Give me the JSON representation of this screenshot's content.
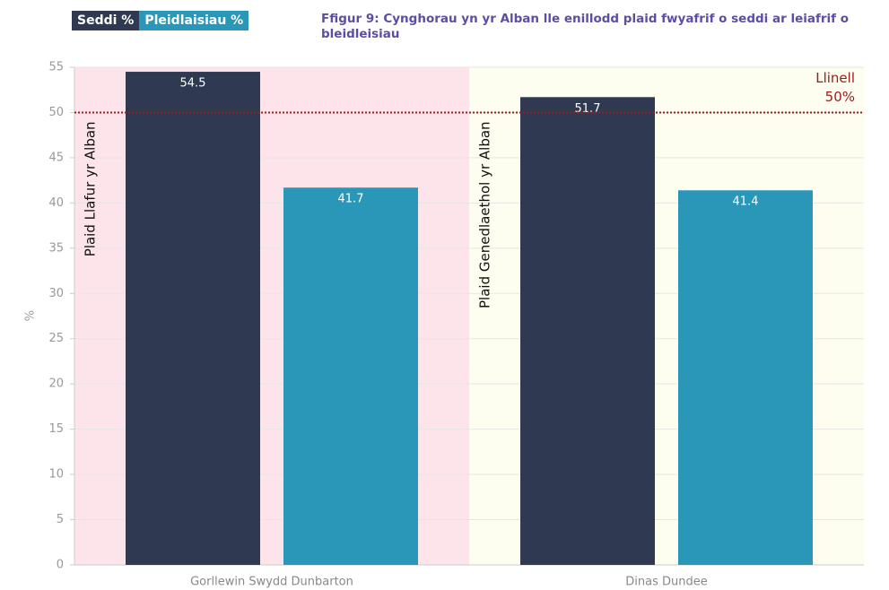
{
  "chart_data": {
    "type": "bar",
    "title": "Ffigur 9: Cynghorau yn yr Alban lle enillodd plaid fwyafrif o seddi ar leiafrif o bleidleisiau",
    "y_label": "%",
    "categories": [
      "Gorllewin Swydd Dunbarton",
      "Dinas Dundee"
    ],
    "group_annotations": [
      "Plaid Llafur yr Alban",
      "Plaid Genedlaethol yr Alban"
    ],
    "group_backgrounds": [
      "#fce4ea",
      "#fdfdf0"
    ],
    "series": [
      {
        "name": "Seddi %",
        "color": "#2f3a52",
        "values": [
          54.5,
          51.7
        ]
      },
      {
        "name": "Pleidlaisiau %",
        "color": "#2a97b8",
        "values": [
          41.7,
          41.4
        ]
      }
    ],
    "reference_line": {
      "value": 50,
      "label_lines": [
        "Llinell",
        "50%"
      ],
      "color": "#a01c1c"
    },
    "ylim": [
      0,
      55
    ],
    "yticks": [
      0,
      5,
      10,
      15,
      20,
      25,
      30,
      35,
      40,
      45,
      50,
      55
    ],
    "grid": true
  }
}
